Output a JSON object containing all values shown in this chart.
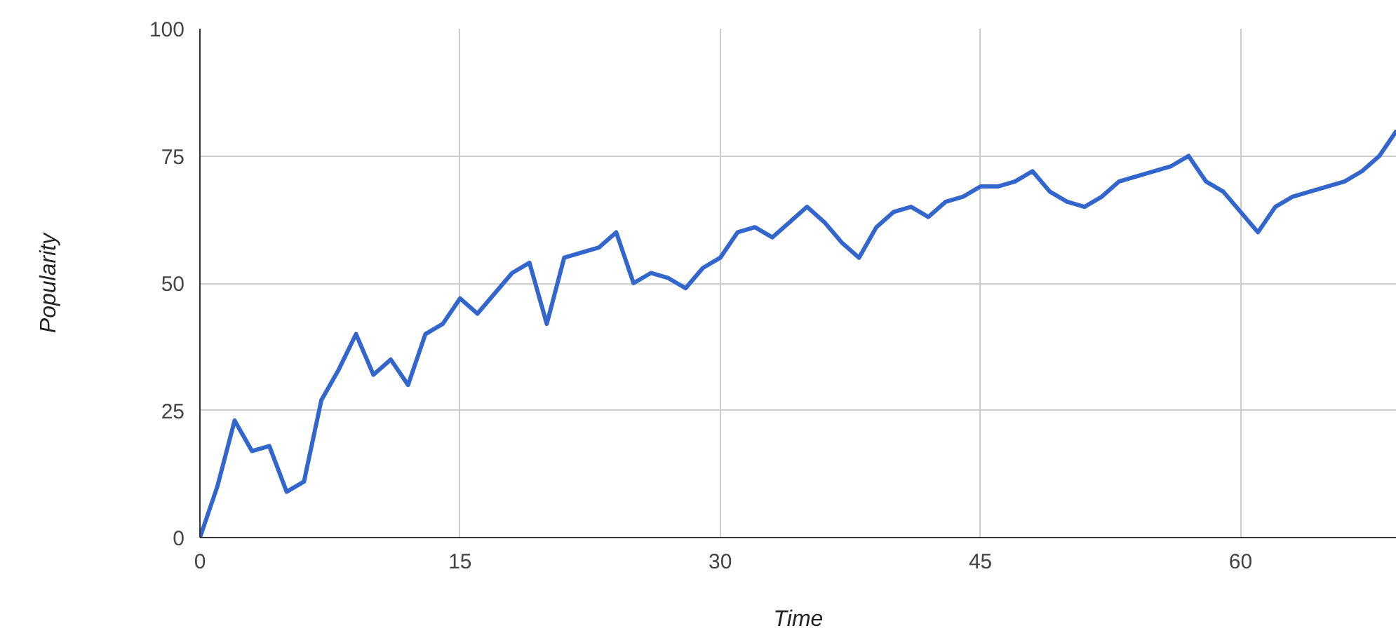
{
  "chart_data": {
    "type": "line",
    "xlabel": "Time",
    "ylabel": "Popularity",
    "x": [
      0,
      1,
      2,
      3,
      4,
      5,
      6,
      7,
      8,
      9,
      10,
      11,
      12,
      13,
      14,
      15,
      16,
      17,
      18,
      19,
      20,
      21,
      22,
      23,
      24,
      25,
      26,
      27,
      28,
      29,
      30,
      31,
      32,
      33,
      34,
      35,
      36,
      37,
      38,
      39,
      40,
      41,
      42,
      43,
      44,
      45,
      46,
      47,
      48,
      49,
      50,
      51,
      52,
      53,
      54,
      55,
      56,
      57,
      58,
      59,
      60,
      61,
      62,
      63,
      64,
      65,
      66,
      67,
      68,
      69
    ],
    "series": [
      {
        "color": "#3366cc",
        "values": [
          0,
          10,
          23,
          17,
          18,
          9,
          11,
          27,
          33,
          40,
          32,
          35,
          30,
          40,
          42,
          47,
          44,
          48,
          52,
          54,
          42,
          55,
          56,
          57,
          60,
          50,
          52,
          51,
          49,
          53,
          55,
          60,
          61,
          59,
          62,
          65,
          62,
          58,
          55,
          61,
          64,
          65,
          63,
          66,
          67,
          69,
          69,
          70,
          72,
          68,
          66,
          65,
          67,
          70,
          71,
          72,
          73,
          75,
          70,
          68,
          64,
          60,
          65,
          67,
          68,
          69,
          70,
          72,
          75,
          80
        ]
      }
    ],
    "xlim": [
      0,
      69
    ],
    "xticks": [
      0,
      15,
      30,
      45,
      60
    ],
    "ylim": [
      0,
      100
    ],
    "yticks": [
      0,
      25,
      50,
      75,
      100
    ],
    "grid": true,
    "marker": "none",
    "line_style": "solid"
  }
}
